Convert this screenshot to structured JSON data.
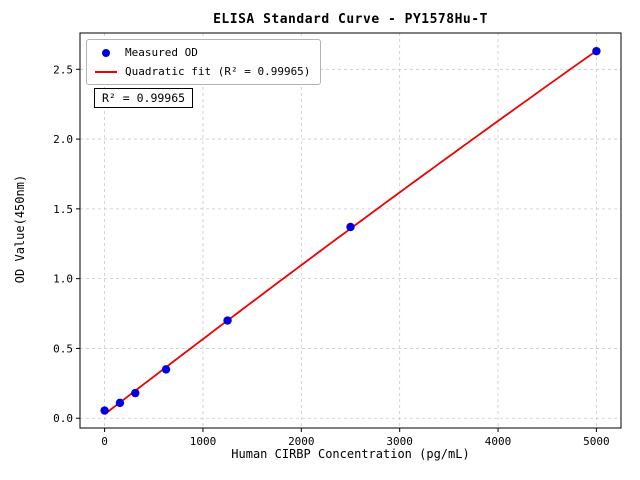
{
  "chart_data": {
    "type": "scatter",
    "title": "ELISA Standard Curve - PY1578Hu-T",
    "xlabel": "Human CIRBP Concentration (pg/mL)",
    "ylabel": "OD Value(450nm)",
    "x": [
      0,
      156,
      312,
      625,
      1250,
      2500,
      5000
    ],
    "series": [
      {
        "name": "Measured OD",
        "type": "scatter",
        "values": [
          0.055,
          0.11,
          0.18,
          0.35,
          0.7,
          1.37,
          2.63
        ]
      },
      {
        "name": "Quadratic fit (R² = 0.99965)",
        "type": "line",
        "fit": "quadratic",
        "r_squared": 0.99965
      }
    ],
    "legend": [
      "Measured OD",
      "Quadratic fit (R² = 0.99965)"
    ],
    "legend_position": "upper left",
    "annotation": "R² = 0.99965",
    "xlim": [
      -250,
      5250
    ],
    "ylim": [
      -0.07,
      2.76
    ],
    "x_ticks": [
      0,
      1000,
      2000,
      3000,
      4000,
      5000
    ],
    "x_tick_labels": [
      "0",
      "1000",
      "2000",
      "3000",
      "4000",
      "5000"
    ],
    "y_ticks": [
      0,
      0.5,
      1.0,
      1.5,
      2.0,
      2.5
    ],
    "y_tick_labels": [
      "0.0",
      "0.5",
      "1.0",
      "1.5",
      "2.0",
      "2.5"
    ],
    "grid": true,
    "colors": {
      "marker": "#0000dd",
      "line": "#ee0000",
      "grid": "#c9c9c9",
      "axis": "#000000"
    }
  }
}
